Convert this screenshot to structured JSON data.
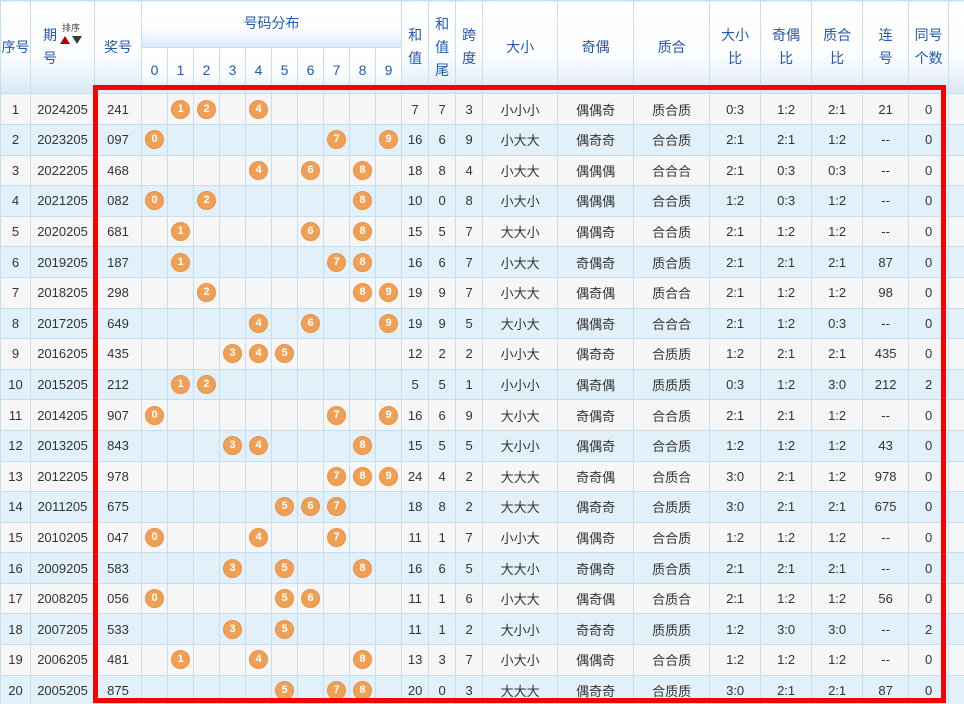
{
  "header": {
    "seq": "序号",
    "period": "期\n号",
    "sort_label": "排序",
    "prize": "奖号",
    "distribution": "号码分布",
    "digits": [
      "0",
      "1",
      "2",
      "3",
      "4",
      "5",
      "6",
      "7",
      "8",
      "9"
    ],
    "sum": "和\n值",
    "sum_tail": "和\n值\n尾",
    "span": "跨\n度",
    "size": "大小",
    "parity": "奇偶",
    "prime": "质合",
    "size_ratio": "大小\n比",
    "parity_ratio": "奇偶\n比",
    "prime_ratio": "质合\n比",
    "consecutive": "连\n号",
    "same_count": "同号\n个数"
  },
  "colors": {
    "header_text": "#2358AE",
    "ball": "#F0A055",
    "highlight_border": "#FB0000",
    "dist_bg": "#FFFDE8",
    "row_odd_bg": "#F6F6F6",
    "row_even_bg": "#E2F0FA",
    "sort_up": "#B30000",
    "sort_down": "#3A3A3A"
  },
  "rows": [
    {
      "seq": "1",
      "period": "2024205",
      "prize": "241",
      "balls": [
        1,
        2,
        4
      ],
      "sum": "7",
      "sum_tail": "7",
      "span": "3",
      "size": "小小小",
      "parity": "偶偶奇",
      "prime": "质合质",
      "size_ratio": "0:3",
      "parity_ratio": "1:2",
      "prime_ratio": "2:1",
      "consecutive": "21",
      "same_count": "0"
    },
    {
      "seq": "2",
      "period": "2023205",
      "prize": "097",
      "balls": [
        0,
        7,
        9
      ],
      "sum": "16",
      "sum_tail": "6",
      "span": "9",
      "size": "小大大",
      "parity": "偶奇奇",
      "prime": "合合质",
      "size_ratio": "2:1",
      "parity_ratio": "2:1",
      "prime_ratio": "1:2",
      "consecutive": "--",
      "same_count": "0"
    },
    {
      "seq": "3",
      "period": "2022205",
      "prize": "468",
      "balls": [
        4,
        6,
        8
      ],
      "sum": "18",
      "sum_tail": "8",
      "span": "4",
      "size": "小大大",
      "parity": "偶偶偶",
      "prime": "合合合",
      "size_ratio": "2:1",
      "parity_ratio": "0:3",
      "prime_ratio": "0:3",
      "consecutive": "--",
      "same_count": "0"
    },
    {
      "seq": "4",
      "period": "2021205",
      "prize": "082",
      "balls": [
        0,
        2,
        8
      ],
      "sum": "10",
      "sum_tail": "0",
      "span": "8",
      "size": "小大小",
      "parity": "偶偶偶",
      "prime": "合合质",
      "size_ratio": "1:2",
      "parity_ratio": "0:3",
      "prime_ratio": "1:2",
      "consecutive": "--",
      "same_count": "0"
    },
    {
      "seq": "5",
      "period": "2020205",
      "prize": "681",
      "balls": [
        1,
        6,
        8
      ],
      "sum": "15",
      "sum_tail": "5",
      "span": "7",
      "size": "大大小",
      "parity": "偶偶奇",
      "prime": "合合质",
      "size_ratio": "2:1",
      "parity_ratio": "1:2",
      "prime_ratio": "1:2",
      "consecutive": "--",
      "same_count": "0"
    },
    {
      "seq": "6",
      "period": "2019205",
      "prize": "187",
      "balls": [
        1,
        7,
        8
      ],
      "sum": "16",
      "sum_tail": "6",
      "span": "7",
      "size": "小大大",
      "parity": "奇偶奇",
      "prime": "质合质",
      "size_ratio": "2:1",
      "parity_ratio": "2:1",
      "prime_ratio": "2:1",
      "consecutive": "87",
      "same_count": "0"
    },
    {
      "seq": "7",
      "period": "2018205",
      "prize": "298",
      "balls": [
        2,
        8,
        9
      ],
      "sum": "19",
      "sum_tail": "9",
      "span": "7",
      "size": "小大大",
      "parity": "偶奇偶",
      "prime": "质合合",
      "size_ratio": "2:1",
      "parity_ratio": "1:2",
      "prime_ratio": "1:2",
      "consecutive": "98",
      "same_count": "0"
    },
    {
      "seq": "8",
      "period": "2017205",
      "prize": "649",
      "balls": [
        4,
        6,
        9
      ],
      "sum": "19",
      "sum_tail": "9",
      "span": "5",
      "size": "大小大",
      "parity": "偶偶奇",
      "prime": "合合合",
      "size_ratio": "2:1",
      "parity_ratio": "1:2",
      "prime_ratio": "0:3",
      "consecutive": "--",
      "same_count": "0"
    },
    {
      "seq": "9",
      "period": "2016205",
      "prize": "435",
      "balls": [
        3,
        4,
        5
      ],
      "sum": "12",
      "sum_tail": "2",
      "span": "2",
      "size": "小小大",
      "parity": "偶奇奇",
      "prime": "合质质",
      "size_ratio": "1:2",
      "parity_ratio": "2:1",
      "prime_ratio": "2:1",
      "consecutive": "435",
      "same_count": "0"
    },
    {
      "seq": "10",
      "period": "2015205",
      "prize": "212",
      "balls": [
        1,
        2
      ],
      "sum": "5",
      "sum_tail": "5",
      "span": "1",
      "size": "小小小",
      "parity": "偶奇偶",
      "prime": "质质质",
      "size_ratio": "0:3",
      "parity_ratio": "1:2",
      "prime_ratio": "3:0",
      "consecutive": "212",
      "same_count": "2"
    },
    {
      "seq": "11",
      "period": "2014205",
      "prize": "907",
      "balls": [
        0,
        7,
        9
      ],
      "sum": "16",
      "sum_tail": "6",
      "span": "9",
      "size": "大小大",
      "parity": "奇偶奇",
      "prime": "合合质",
      "size_ratio": "2:1",
      "parity_ratio": "2:1",
      "prime_ratio": "1:2",
      "consecutive": "--",
      "same_count": "0"
    },
    {
      "seq": "12",
      "period": "2013205",
      "prize": "843",
      "balls": [
        3,
        4,
        8
      ],
      "sum": "15",
      "sum_tail": "5",
      "span": "5",
      "size": "大小小",
      "parity": "偶偶奇",
      "prime": "合合质",
      "size_ratio": "1:2",
      "parity_ratio": "1:2",
      "prime_ratio": "1:2",
      "consecutive": "43",
      "same_count": "0"
    },
    {
      "seq": "13",
      "period": "2012205",
      "prize": "978",
      "balls": [
        7,
        8,
        9
      ],
      "sum": "24",
      "sum_tail": "4",
      "span": "2",
      "size": "大大大",
      "parity": "奇奇偶",
      "prime": "合质合",
      "size_ratio": "3:0",
      "parity_ratio": "2:1",
      "prime_ratio": "1:2",
      "consecutive": "978",
      "same_count": "0"
    },
    {
      "seq": "14",
      "period": "2011205",
      "prize": "675",
      "balls": [
        5,
        6,
        7
      ],
      "sum": "18",
      "sum_tail": "8",
      "span": "2",
      "size": "大大大",
      "parity": "偶奇奇",
      "prime": "合质质",
      "size_ratio": "3:0",
      "parity_ratio": "2:1",
      "prime_ratio": "2:1",
      "consecutive": "675",
      "same_count": "0"
    },
    {
      "seq": "15",
      "period": "2010205",
      "prize": "047",
      "balls": [
        0,
        4,
        7
      ],
      "sum": "11",
      "sum_tail": "1",
      "span": "7",
      "size": "小小大",
      "parity": "偶偶奇",
      "prime": "合合质",
      "size_ratio": "1:2",
      "parity_ratio": "1:2",
      "prime_ratio": "1:2",
      "consecutive": "--",
      "same_count": "0"
    },
    {
      "seq": "16",
      "period": "2009205",
      "prize": "583",
      "balls": [
        3,
        5,
        8
      ],
      "sum": "16",
      "sum_tail": "6",
      "span": "5",
      "size": "大大小",
      "parity": "奇偶奇",
      "prime": "质合质",
      "size_ratio": "2:1",
      "parity_ratio": "2:1",
      "prime_ratio": "2:1",
      "consecutive": "--",
      "same_count": "0"
    },
    {
      "seq": "17",
      "period": "2008205",
      "prize": "056",
      "balls": [
        0,
        5,
        6
      ],
      "sum": "11",
      "sum_tail": "1",
      "span": "6",
      "size": "小大大",
      "parity": "偶奇偶",
      "prime": "合质合",
      "size_ratio": "2:1",
      "parity_ratio": "1:2",
      "prime_ratio": "1:2",
      "consecutive": "56",
      "same_count": "0"
    },
    {
      "seq": "18",
      "period": "2007205",
      "prize": "533",
      "balls": [
        3,
        5
      ],
      "sum": "11",
      "sum_tail": "1",
      "span": "2",
      "size": "大小小",
      "parity": "奇奇奇",
      "prime": "质质质",
      "size_ratio": "1:2",
      "parity_ratio": "3:0",
      "prime_ratio": "3:0",
      "consecutive": "--",
      "same_count": "2"
    },
    {
      "seq": "19",
      "period": "2006205",
      "prize": "481",
      "balls": [
        1,
        4,
        8
      ],
      "sum": "13",
      "sum_tail": "3",
      "span": "7",
      "size": "小大小",
      "parity": "偶偶奇",
      "prime": "合合质",
      "size_ratio": "1:2",
      "parity_ratio": "1:2",
      "prime_ratio": "1:2",
      "consecutive": "--",
      "same_count": "0"
    },
    {
      "seq": "20",
      "period": "2005205",
      "prize": "875",
      "balls": [
        5,
        7,
        8
      ],
      "sum": "20",
      "sum_tail": "0",
      "span": "3",
      "size": "大大大",
      "parity": "偶奇奇",
      "prime": "合质质",
      "size_ratio": "3:0",
      "parity_ratio": "2:1",
      "prime_ratio": "2:1",
      "consecutive": "87",
      "same_count": "0"
    }
  ]
}
